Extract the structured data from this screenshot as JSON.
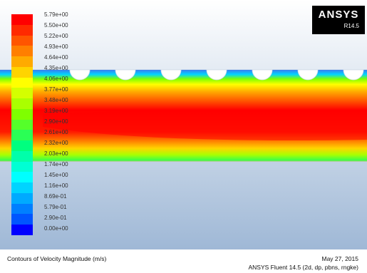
{
  "logo": {
    "text": "ANSYS",
    "version": "R14.5"
  },
  "colorbar": {
    "labels": [
      "5.79e+00",
      "5.50e+00",
      "5.22e+00",
      "4.93e+00",
      "4.64e+00",
      "4.35e+00",
      "4.06e+00",
      "3.77e+00",
      "3.48e+00",
      "3.19e+00",
      "2.90e+00",
      "2.61e+00",
      "2.32e+00",
      "2.03e+00",
      "1.74e+00",
      "1.45e+00",
      "1.16e+00",
      "8.69e-01",
      "5.79e-01",
      "2.90e-01",
      "0.00e+00"
    ],
    "colors": [
      "#ff0000",
      "#ff2a00",
      "#ff5500",
      "#ff7f00",
      "#ffaa00",
      "#ffd400",
      "#ffff00",
      "#d4ff00",
      "#aaff00",
      "#7fff00",
      "#55ff2a",
      "#2aff55",
      "#00ff7f",
      "#00ffaa",
      "#00ffd4",
      "#00ffff",
      "#00d4ff",
      "#00aaff",
      "#007fff",
      "#0055ff",
      "#0000ff"
    ]
  },
  "footer": {
    "title": "Contours of Velocity Magnitude (m/s)",
    "date": "May 27, 2015",
    "solver": "ANSYS Fluent 14.5 (2d, dp, pbns, rngke)"
  }
}
